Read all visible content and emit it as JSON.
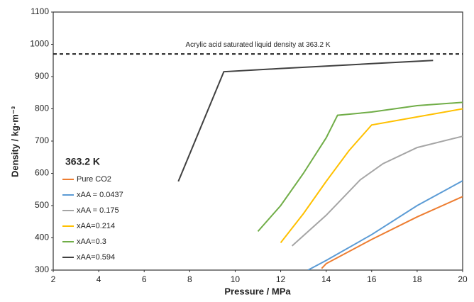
{
  "chart_data": {
    "type": "line",
    "x_label": "Pressure / MPa",
    "y_label": "Density / kg·m⁻³",
    "legend_title": "363.2 K",
    "legend": "left",
    "reference_line": {
      "value": 970,
      "label": "Acrylic acid saturated liquid density at 363.2 K",
      "color": "#222222"
    },
    "xlim": [
      2,
      20
    ],
    "xticks": [
      2,
      4,
      6,
      8,
      10,
      12,
      14,
      16,
      18,
      20
    ],
    "ylim": [
      300,
      1100
    ],
    "yticks": [
      300,
      400,
      500,
      600,
      700,
      800,
      900,
      1000,
      1100
    ],
    "series": [
      {
        "name": "Pure CO2",
        "color": "#ed7d31",
        "x": [
          13.8,
          14,
          16,
          18,
          20
        ],
        "values": [
          305,
          320,
          395,
          465,
          528
        ]
      },
      {
        "name": "xAA = 0.0437",
        "color": "#5b9bd5",
        "x": [
          13.2,
          14,
          16,
          18,
          20
        ],
        "values": [
          300,
          330,
          410,
          500,
          577
        ]
      },
      {
        "name": "xAA = 0.175",
        "color": "#a5a5a5",
        "x": [
          12.5,
          14,
          15.5,
          16.5,
          18,
          20
        ],
        "values": [
          375,
          470,
          580,
          630,
          680,
          715
        ]
      },
      {
        "name": "xAA=0.214",
        "color": "#ffc000",
        "x": [
          12,
          13,
          14,
          15,
          16,
          18,
          20
        ],
        "values": [
          385,
          475,
          575,
          670,
          750,
          775,
          800
        ]
      },
      {
        "name": "xAA=0.3",
        "color": "#70ad47",
        "x": [
          11,
          12,
          13,
          14,
          14.5,
          16,
          18,
          20
        ],
        "values": [
          420,
          500,
          600,
          710,
          780,
          790,
          810,
          820
        ]
      },
      {
        "name": "xAA=0.594",
        "color": "#404040",
        "x": [
          7.5,
          9.5,
          12,
          16,
          18.7
        ],
        "values": [
          575,
          915,
          925,
          940,
          950
        ]
      }
    ]
  }
}
